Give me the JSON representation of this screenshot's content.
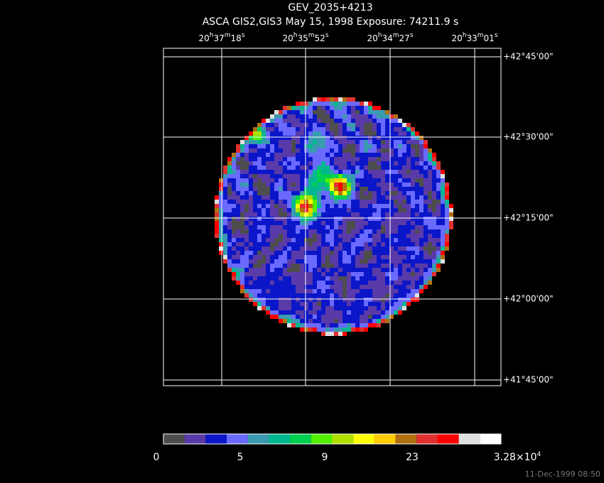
{
  "header": {
    "title": "GEV_2035+4213",
    "subtitle": "ASCA GIS2,GIS3 May 15, 1998 Exposure: 74211.9 s"
  },
  "ra_labels": [
    [
      "20",
      "h",
      "37",
      "m",
      "18",
      "s"
    ],
    [
      "20",
      "h",
      "35",
      "m",
      "52",
      "s"
    ],
    [
      "20",
      "h",
      "34",
      "m",
      "27",
      "s"
    ],
    [
      "20",
      "h",
      "33",
      "m",
      "01",
      "s"
    ]
  ],
  "dec_labels": [
    "+42°45'00\"",
    "+42°30'00\"",
    "+42°15'00\"",
    "+42°00'00\"",
    "+41°45'00\""
  ],
  "colorbar": {
    "colors": [
      "#4d4d4d",
      "#5a3aa8",
      "#0a16c8",
      "#6a6aff",
      "#3a9ab0",
      "#00b890",
      "#00d050",
      "#50f000",
      "#b0e000",
      "#ffff00",
      "#ffcc00",
      "#b07010",
      "#e03030",
      "#ff0000",
      "#e0e0e0",
      "#ffffff"
    ],
    "labels": [
      "0",
      "5",
      "9",
      "23",
      [
        "3.28×10",
        "4"
      ]
    ]
  },
  "footer": {
    "timestamp": "11-Dec-1999 08:50"
  }
}
